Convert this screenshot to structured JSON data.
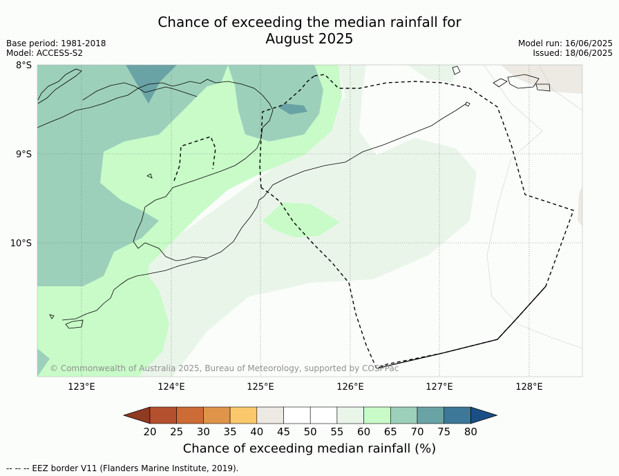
{
  "title_line1": "Chance of exceeding the median rainfall for",
  "title_line2": "August 2025",
  "base_period": "Base period: 1981-2018",
  "model": "Model: ACCESS-S2",
  "model_run": "Model run: 16/06/2025",
  "issued": "Issued: 18/06/2025",
  "lat_labels": [
    "8°S",
    "9°S",
    "10°S"
  ],
  "lon_labels": [
    "123°E",
    "124°E",
    "125°E",
    "126°E",
    "127°E",
    "128°E"
  ],
  "copyright": "© Commonwealth of Australia 2025, Bureau of Meteorology, supported by COSPPac",
  "colorbar": {
    "ticks": [
      "20",
      "25",
      "30",
      "35",
      "40",
      "45",
      "50",
      "55",
      "60",
      "65",
      "70",
      "75",
      "80"
    ],
    "colors": [
      "#8f3a23",
      "#b5502e",
      "#cc6b36",
      "#e0944a",
      "#fbc96c",
      "#ede9e3",
      "#ffffff",
      "#ffffff",
      "#eaf5ea",
      "#c8fbc8",
      "#9dd0bb",
      "#6aa3a5",
      "#3d7898",
      "#1a4f86"
    ],
    "label": "Chance of exceeding median rainfall (%)"
  },
  "footnote": "--  --  -- EEZ border V11 (Flanders Marine Institute, 2019)."
}
